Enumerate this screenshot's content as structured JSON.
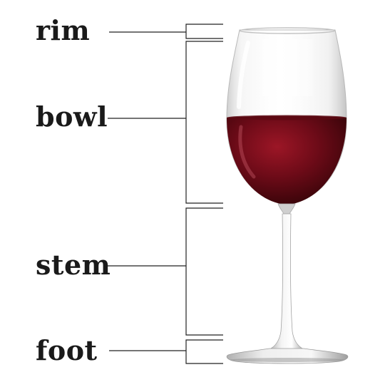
{
  "parts": [
    {
      "id": "rim",
      "label": "rim"
    },
    {
      "id": "bowl",
      "label": "bowl"
    },
    {
      "id": "stem",
      "label": "stem"
    },
    {
      "id": "foot",
      "label": "foot"
    }
  ],
  "colors": {
    "wine": "#7a0f1c",
    "wine_dark": "#3a0509",
    "leader_line": "#222222",
    "label_text": "#1a1a1a"
  },
  "icons": {
    "illustration": "wine-glass-icon"
  }
}
